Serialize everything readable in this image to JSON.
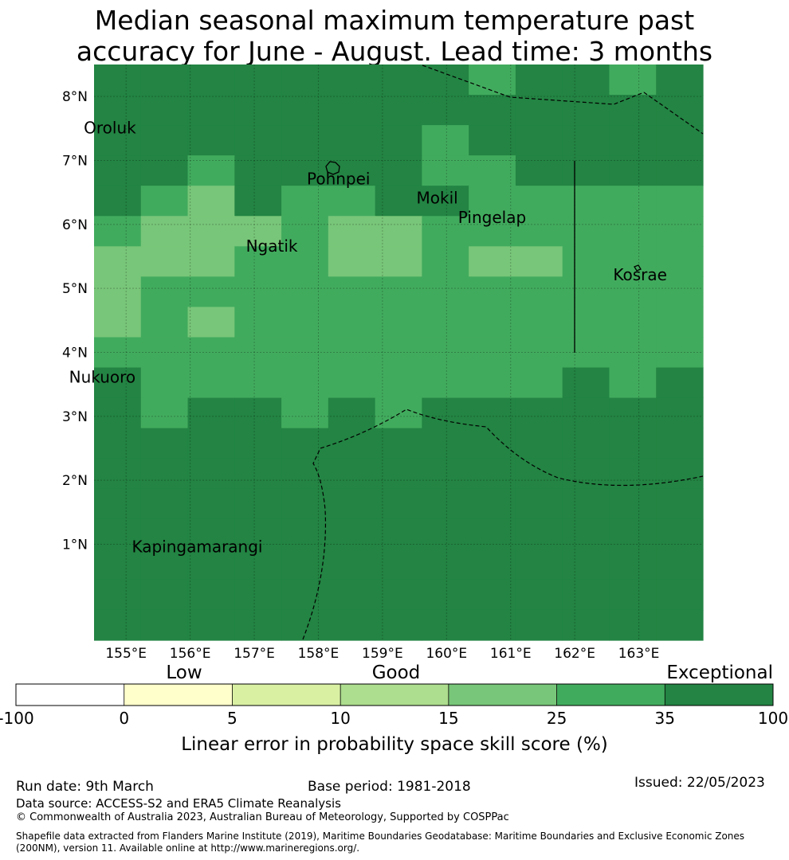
{
  "title": {
    "line1": "Median seasonal maximum temperature past",
    "line2": "accuracy for June - August. Lead time: 3 months"
  },
  "colors": {
    "exceptional": "#238443",
    "very_good": "#41ab5d",
    "good_plus": "#78c679",
    "good": "#addd8e",
    "fair": "#d9f0a3",
    "low": "#ffffcc",
    "none": "#ffffff"
  },
  "map": {
    "lon_ticks": [
      "155°E",
      "156°E",
      "157°E",
      "158°E",
      "159°E",
      "160°E",
      "161°E",
      "162°E",
      "163°E"
    ],
    "lat_ticks": [
      "8°N",
      "7°N",
      "6°N",
      "5°N",
      "4°N",
      "3°N",
      "2°N",
      "1°N"
    ],
    "places": [
      {
        "name": "Oroluk",
        "lon": 154.34,
        "lat": 7.5
      },
      {
        "name": "Pohnpei",
        "lon": 157.82,
        "lat": 6.7
      },
      {
        "name": "Mokil",
        "lon": 159.53,
        "lat": 6.4
      },
      {
        "name": "Pingelap",
        "lon": 160.18,
        "lat": 6.1
      },
      {
        "name": "Ngatik",
        "lon": 156.87,
        "lat": 5.65
      },
      {
        "name": "Kosrae",
        "lon": 162.6,
        "lat": 5.2
      },
      {
        "name": "Nukuoro",
        "lon": 154.11,
        "lat": 3.6
      },
      {
        "name": "Kapingamarangi",
        "lon": 155.09,
        "lat": 0.95
      }
    ],
    "skill_grid_note": "lon cells from 154.5E step 0.83, lat rows from 8.5N step 0.56; values: 3=exceptional,2=very_good,1=good_plus",
    "skill_grid": [
      [
        3,
        3,
        3,
        3,
        3,
        3,
        3,
        3,
        2,
        3,
        3,
        2,
        3
      ],
      [
        3,
        3,
        3,
        3,
        3,
        3,
        3,
        3,
        3,
        3,
        3,
        3,
        3
      ],
      [
        3,
        3,
        3,
        3,
        3,
        3,
        3,
        2,
        3,
        3,
        3,
        3,
        3
      ],
      [
        3,
        3,
        2,
        3,
        3,
        3,
        3,
        2,
        2,
        3,
        3,
        3,
        3
      ],
      [
        3,
        2,
        1,
        3,
        2,
        2,
        3,
        3,
        2,
        2,
        2,
        2,
        2
      ],
      [
        2,
        1,
        1,
        1,
        2,
        1,
        1,
        2,
        2,
        2,
        2,
        2,
        2
      ],
      [
        1,
        1,
        1,
        2,
        2,
        1,
        1,
        2,
        1,
        1,
        2,
        2,
        2
      ],
      [
        1,
        2,
        2,
        2,
        2,
        2,
        2,
        2,
        2,
        2,
        2,
        2,
        2
      ],
      [
        1,
        2,
        1,
        2,
        2,
        2,
        2,
        2,
        2,
        2,
        2,
        2,
        2
      ],
      [
        2,
        2,
        2,
        2,
        2,
        2,
        2,
        2,
        2,
        2,
        2,
        2,
        2
      ],
      [
        3,
        2,
        2,
        2,
        2,
        2,
        2,
        2,
        2,
        2,
        3,
        2,
        3
      ],
      [
        3,
        2,
        3,
        3,
        2,
        3,
        2,
        3,
        3,
        3,
        3,
        3,
        3
      ],
      [
        3,
        3,
        3,
        3,
        3,
        3,
        3,
        3,
        3,
        3,
        3,
        3,
        3
      ],
      [
        3,
        3,
        3,
        3,
        3,
        3,
        3,
        3,
        3,
        3,
        3,
        3,
        3
      ],
      [
        3,
        3,
        3,
        3,
        3,
        3,
        3,
        3,
        3,
        3,
        3,
        3,
        3
      ],
      [
        3,
        3,
        3,
        3,
        3,
        3,
        3,
        3,
        3,
        3,
        3,
        3,
        3
      ],
      [
        3,
        3,
        3,
        3,
        3,
        3,
        3,
        3,
        3,
        3,
        3,
        3,
        3
      ],
      [
        3,
        3,
        3,
        3,
        3,
        3,
        3,
        3,
        3,
        3,
        3,
        3,
        3
      ],
      [
        3,
        3,
        3,
        3,
        3,
        3,
        3,
        3,
        3,
        3,
        3,
        3,
        3
      ]
    ]
  },
  "colorbar": {
    "category_labels": [
      "Low",
      "Good",
      "Exceptional"
    ],
    "tick_labels": [
      "-100",
      "0",
      "5",
      "10",
      "15",
      "25",
      "35",
      "100"
    ],
    "label": "Linear error in probability space skill score (%)"
  },
  "footer": {
    "run_date": "Run date: 9th March",
    "base_period": "Base period: 1981-2018",
    "issued": "Issued: 22/05/2023",
    "data_source": "Data source: ACCESS-S2 and ERA5 Climate Reanalysis",
    "copyright": "© Commonwealth of Australia 2023, Australian Bureau of Meteorology, Supported by COSPPac",
    "shapefile": "Shapefile data extracted from Flanders Marine Institute (2019), Maritime Boundaries Geodatabase: Maritime Boundaries and Exclusive Economic Zones (200NM), version 11. Available online at http://www.marineregions.org/."
  }
}
